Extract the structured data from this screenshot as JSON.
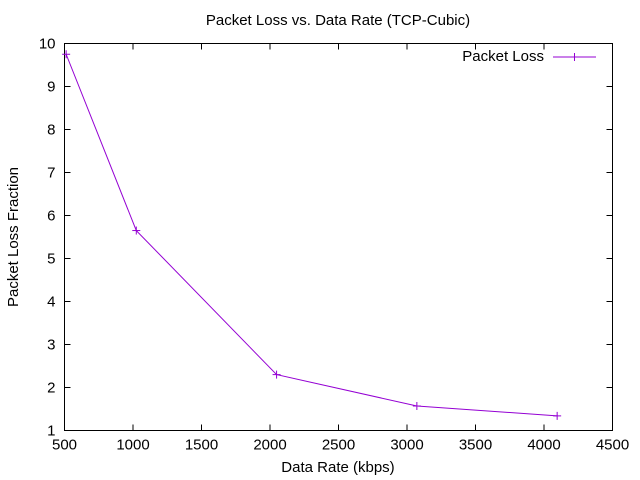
{
  "chart_data": {
    "type": "line",
    "title": "Packet Loss vs. Data Rate (TCP-Cubic)",
    "xlabel": "Data Rate (kbps)",
    "ylabel": "Packet Loss Fraction",
    "xlim": [
      500,
      4500
    ],
    "ylim": [
      1,
      10
    ],
    "xticks": [
      500,
      1000,
      1500,
      2000,
      2500,
      3000,
      3500,
      4000,
      4500
    ],
    "yticks": [
      1,
      2,
      3,
      4,
      5,
      6,
      7,
      8,
      9,
      10
    ],
    "grid": false,
    "legend_position": "top-right",
    "series_color": "#9400d3",
    "series": [
      {
        "name": "Packet Loss",
        "marker": "plus",
        "x": [
          512,
          1024,
          2048,
          3072,
          4096
        ],
        "y": [
          9.75,
          5.65,
          2.3,
          1.57,
          1.34
        ]
      }
    ]
  }
}
